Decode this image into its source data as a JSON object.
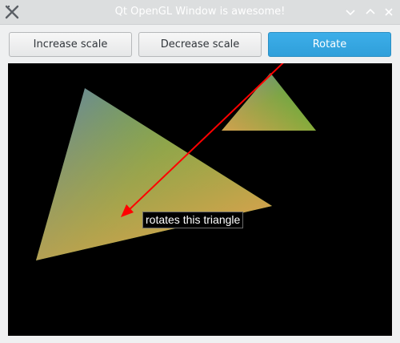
{
  "window": {
    "title": "Qt OpenGL Window is awesome!",
    "icons": {
      "app": "qt-x-icon",
      "minimize": "chevron-down-icon",
      "maximize": "chevron-up-icon",
      "close": "close-icon"
    }
  },
  "toolbar": {
    "increase_label": "Increase scale",
    "decrease_label": "Decrease scale",
    "rotate_label": "Rotate"
  },
  "scene": {
    "annotation_text": "rotates this triangle",
    "colors": {
      "background": "#000000",
      "green": "#3fb52a",
      "orange": "#e0a050",
      "blue": "#5f82a8",
      "arrow": "#ff0000"
    }
  },
  "colors": {
    "accent": "#3daee9",
    "titlebar": "#dcdedf"
  }
}
